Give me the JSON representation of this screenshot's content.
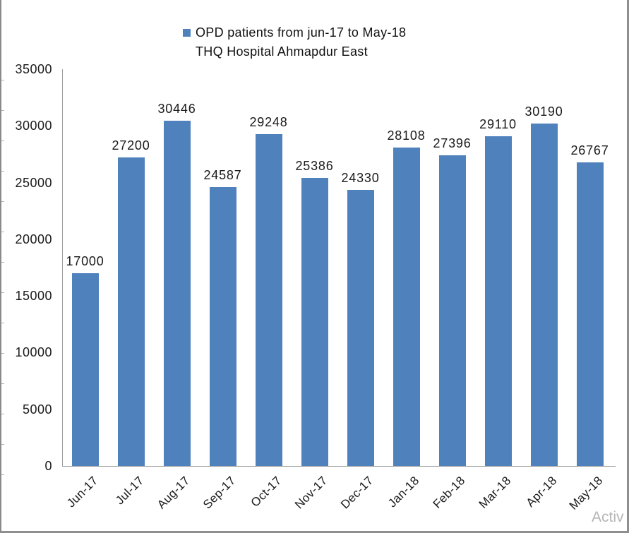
{
  "window": {
    "watermark": "Activ"
  },
  "legend": {
    "line1": "OPD patients from jun-17 to May-18",
    "line2": "THQ Hospital Ahmapdur East",
    "marker_color": "#4F81BD"
  },
  "chart_data": {
    "type": "bar",
    "title": "OPD patients from jun-17 to May-18",
    "subtitle": "THQ Hospital Ahmapdur East",
    "categories": [
      "Jun-17",
      "Jul-17",
      "Aug-17",
      "Sep-17",
      "Oct-17",
      "Nov-17",
      "Dec-17",
      "Jan-18",
      "Feb-18",
      "Mar-18",
      "Apr-18",
      "May-18"
    ],
    "values": [
      17000,
      27200,
      30446,
      24587,
      29248,
      25386,
      24330,
      28108,
      27396,
      29110,
      30190,
      26767
    ],
    "xlabel": "",
    "ylabel": "",
    "ylim": [
      0,
      35000
    ],
    "ytick_interval": 5000,
    "yticks": [
      0,
      5000,
      10000,
      15000,
      20000,
      25000,
      30000,
      35000
    ],
    "grid": false,
    "legend_position": "top-center",
    "data_labels": true,
    "bar_color": "#4F81BD",
    "axis_color": "#9b9b9b",
    "text_color": "#1a1a1a"
  }
}
